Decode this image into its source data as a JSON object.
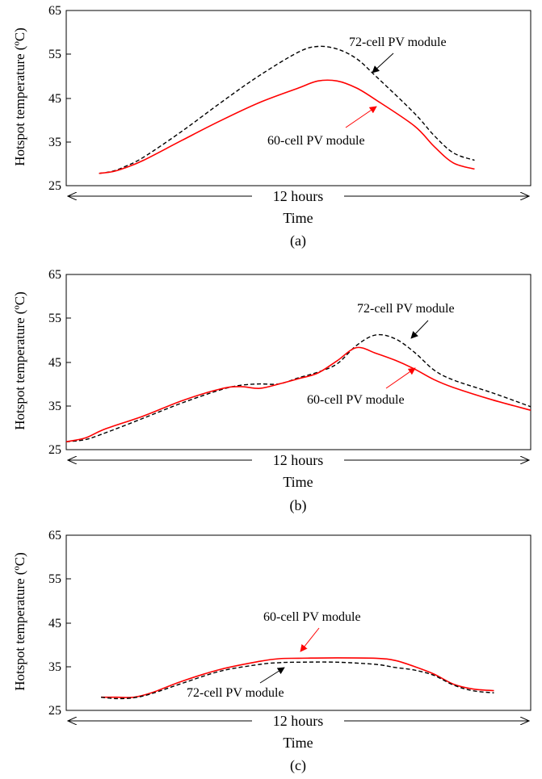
{
  "chart_data": [
    {
      "type": "line",
      "caption": "(a)",
      "ylabel": "Hotspot temperature (ºC)",
      "xlabel": "Time",
      "span_label": "12 hours",
      "ylim": [
        25,
        65
      ],
      "yticks": [
        "25",
        "35",
        "45",
        "55",
        "65"
      ],
      "xlim": [
        0,
        12
      ],
      "grid": false,
      "series": [
        {
          "key": "s72",
          "label": "72-cell PV module",
          "color": "#000000",
          "dash": true,
          "x": [
            0.85,
            1.2,
            1.5,
            2,
            3,
            4,
            5,
            6,
            6.5,
            7,
            7.5,
            8,
            9,
            9.5,
            10,
            10.55
          ],
          "y": [
            27.8,
            28.3,
            29.3,
            31.5,
            37.5,
            44,
            50.2,
            55.5,
            56.8,
            56.2,
            54,
            50,
            41.5,
            36.5,
            32.5,
            30.8
          ]
        },
        {
          "key": "s60",
          "label": "60-cell PV module",
          "color": "#ff0000",
          "dash": false,
          "x": [
            0.85,
            1.2,
            1.5,
            2,
            3,
            4,
            5,
            6,
            6.5,
            7,
            7.5,
            8,
            9,
            9.5,
            10,
            10.55
          ],
          "y": [
            27.8,
            28.2,
            29,
            30.8,
            35.4,
            39.9,
            44,
            47.3,
            48.9,
            48.9,
            47.3,
            44.6,
            38.6,
            34,
            30.2,
            28.8
          ]
        }
      ],
      "annotations": [
        {
          "series": "s72",
          "text": "72-cell PV module"
        },
        {
          "series": "s60",
          "text": "60-cell PV module"
        }
      ]
    },
    {
      "type": "line",
      "caption": "(b)",
      "ylabel": "Hotspot temperature (ºC)",
      "xlabel": "Time",
      "span_label": "12 hours",
      "ylim": [
        25,
        65
      ],
      "yticks": [
        "25",
        "35",
        "45",
        "55",
        "65"
      ],
      "xlim": [
        0,
        12
      ],
      "grid": false,
      "series": [
        {
          "key": "s72",
          "label": "72-cell PV module",
          "color": "#000000",
          "dash": true,
          "x": [
            0,
            0.5,
            1,
            2,
            3,
            4,
            4.5,
            5,
            5.5,
            6,
            6.5,
            7,
            7.5,
            8,
            8.5,
            9,
            9.5,
            10,
            11,
            12
          ],
          "y": [
            26.8,
            27.3,
            28.8,
            32.2,
            35.7,
            38.7,
            39.7,
            40.0,
            40.0,
            41.4,
            42.7,
            44.6,
            48.8,
            51.2,
            50.3,
            47.2,
            43.2,
            40.9,
            38.0,
            34.8
          ]
        },
        {
          "key": "s60",
          "label": "60-cell PV module",
          "color": "#ff0000",
          "dash": false,
          "x": [
            0,
            0.5,
            1,
            2,
            3,
            4,
            4.5,
            5,
            5.5,
            6,
            6.5,
            7,
            7.5,
            8,
            8.5,
            9,
            9.5,
            10,
            11,
            12
          ],
          "y": [
            26.8,
            27.7,
            29.7,
            32.7,
            36.2,
            38.9,
            39.4,
            39.0,
            40.0,
            41.2,
            42.5,
            45.3,
            48.3,
            47.0,
            45.4,
            43.4,
            41.0,
            39.2,
            36.4,
            34.0
          ]
        }
      ],
      "annotations": [
        {
          "series": "s72",
          "text": "72-cell PV module"
        },
        {
          "series": "s60",
          "text": "60-cell PV module"
        }
      ]
    },
    {
      "type": "line",
      "caption": "(c)",
      "ylabel": "Hotspot temperature (ºC)",
      "xlabel": "Time",
      "span_label": "12 hours",
      "ylim": [
        25,
        65
      ],
      "yticks": [
        "25",
        "35",
        "45",
        "55",
        "65"
      ],
      "xlim": [
        0,
        12
      ],
      "grid": false,
      "series": [
        {
          "key": "s60",
          "label": "60-cell PV module",
          "color": "#ff0000",
          "dash": false,
          "x": [
            0.9,
            1.3,
            1.75,
            2.2,
            3,
            4,
            5,
            5.5,
            6,
            7,
            8,
            8.5,
            9,
            9.5,
            10,
            10.5,
            11.05
          ],
          "y": [
            28,
            28,
            28,
            29,
            31.7,
            34.4,
            36.2,
            36.8,
            36.9,
            37,
            36.9,
            36.4,
            35,
            33.3,
            31,
            29.9,
            29.5
          ]
        },
        {
          "key": "s72",
          "label": "72-cell PV module",
          "color": "#000000",
          "dash": true,
          "x": [
            0.9,
            1.3,
            1.75,
            2.2,
            3,
            4,
            5,
            5.5,
            6,
            7,
            8,
            8.5,
            9,
            9.5,
            10,
            10.5,
            11.05
          ],
          "y": [
            28,
            27.7,
            27.9,
            28.8,
            31.2,
            34,
            35.5,
            35.9,
            36,
            36,
            35.5,
            34.8,
            34.2,
            33,
            30.8,
            29.5,
            29
          ]
        }
      ],
      "annotations": [
        {
          "series": "s60",
          "text": "60-cell PV module"
        },
        {
          "series": "s72",
          "text": "72-cell PV module"
        }
      ]
    }
  ]
}
